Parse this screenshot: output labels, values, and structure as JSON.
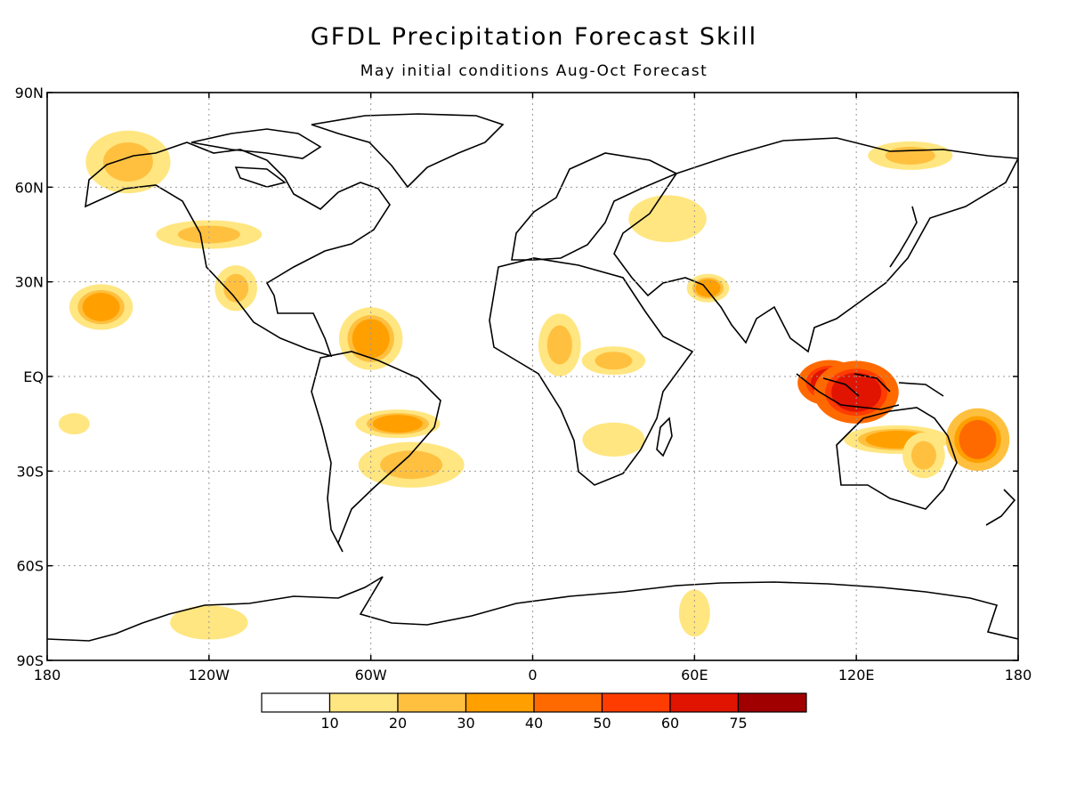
{
  "title": "GFDL Precipitation Forecast Skill",
  "subtitle": "May initial conditions  Aug-Oct Forecast",
  "map": {
    "lat_ticks": [
      "90N",
      "60N",
      "30N",
      "EQ",
      "30S",
      "60S",
      "90S"
    ],
    "lon_ticks": [
      "180",
      "120W",
      "60W",
      "0",
      "60E",
      "120E",
      "180"
    ],
    "grid": "dotted",
    "projection": "lon-lat"
  },
  "colorbar": {
    "labels": [
      "10",
      "20",
      "30",
      "40",
      "50",
      "60",
      "75"
    ],
    "colors": [
      "#ffffff",
      "#ffe680",
      "#ffc040",
      "#ffa000",
      "#ff6a00",
      "#ff3c00",
      "#e01400",
      "#a00000"
    ]
  },
  "skill_regions": [
    {
      "lon": -170,
      "lat": -15,
      "level": 1
    },
    {
      "lon": -160,
      "lat": 22,
      "level": 3
    },
    {
      "lon": -150,
      "lat": 68,
      "level": 2
    },
    {
      "lon": -120,
      "lat": 45,
      "level": 2
    },
    {
      "lon": -110,
      "lat": 28,
      "level": 2
    },
    {
      "lon": -60,
      "lat": 12,
      "level": 3
    },
    {
      "lon": -50,
      "lat": -15,
      "level": 3
    },
    {
      "lon": -45,
      "lat": -28,
      "level": 2
    },
    {
      "lon": 10,
      "lat": 10,
      "level": 2
    },
    {
      "lon": 30,
      "lat": 5,
      "level": 2
    },
    {
      "lon": 30,
      "lat": -20,
      "level": 1
    },
    {
      "lon": 50,
      "lat": 50,
      "level": 1
    },
    {
      "lon": 65,
      "lat": 28,
      "level": 3
    },
    {
      "lon": 110,
      "lat": -2,
      "level": 6
    },
    {
      "lon": 120,
      "lat": -5,
      "level": 6
    },
    {
      "lon": 135,
      "lat": -20,
      "level": 3
    },
    {
      "lon": 145,
      "lat": -25,
      "level": 2
    },
    {
      "lon": 165,
      "lat": -20,
      "level": 4
    },
    {
      "lon": 140,
      "lat": 70,
      "level": 2
    },
    {
      "lon": -120,
      "lat": -78,
      "level": 1
    },
    {
      "lon": 60,
      "lat": -75,
      "level": 1
    }
  ]
}
